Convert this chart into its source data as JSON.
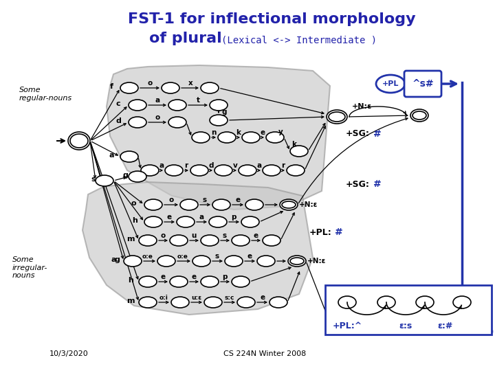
{
  "title_line1": "FST-1 for inflectional morphology",
  "title_line2": "of plural",
  "title_subtitle": "(Lexical <-> Intermediate )",
  "title_color": "#2222aa",
  "bg_color": "#ffffff",
  "label_some_regular": "Some\nregular-nouns",
  "label_some_irregular": "Some\nirregular-\nnouns",
  "label_date": "10/3/2020",
  "label_credit": "CS 224N Winter 2008",
  "box_color": "#2233aa",
  "node_color": "#ffffff",
  "node_edge": "#000000"
}
